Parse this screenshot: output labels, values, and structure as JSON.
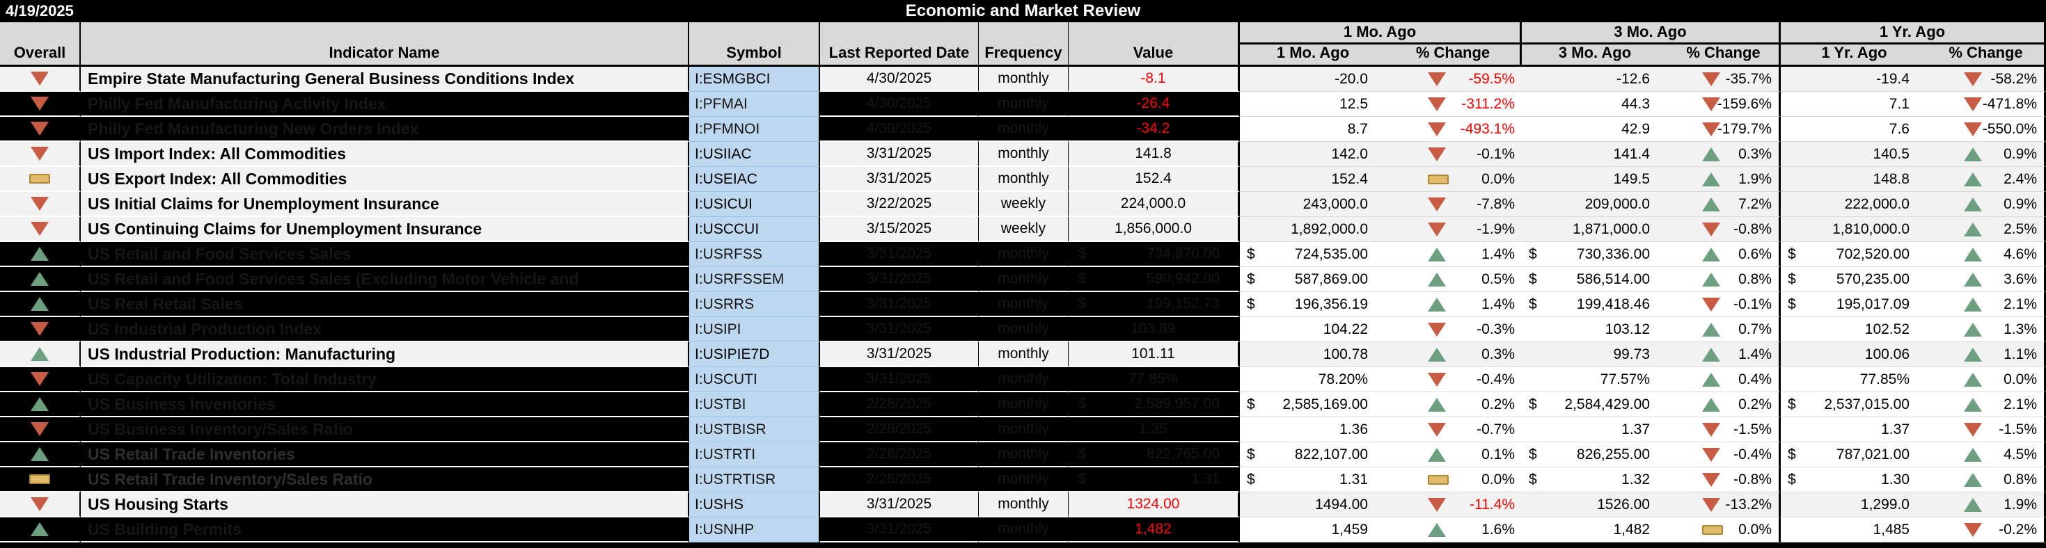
{
  "meta": {
    "report_date": "4/19/2025",
    "title": "Economic and Market Review"
  },
  "colors": {
    "top_band": "#000000",
    "header_bg": "#D9D9D9",
    "symbol_col_bg": "#BDD7EE",
    "row_light": "#F2F2F2",
    "hidden_row_left": "#000000",
    "hidden_row_right": "#FFFFFF",
    "negative_text": "#FF0000",
    "up_icon": "#6DA081",
    "down_icon": "#C75B43",
    "flat_icon": "#E2BA6C"
  },
  "header": {
    "overall": "Overall",
    "indicator": "Indicator Name",
    "symbol": "Symbol",
    "date": "Last Reported Date",
    "frequency": "Frequency",
    "value": "Value",
    "m1_group": "1 Mo. Ago",
    "m3_group": "3 Mo. Ago",
    "y1_group": "1 Yr. Ago",
    "m1": "1 Mo. Ago",
    "m3": "3 Mo. Ago",
    "y1": "1 Yr. Ago",
    "pct": "% Change"
  },
  "icon_legend": {
    "up": "up-triangle-icon",
    "down": "down-triangle-icon",
    "flat": "flat-dash-icon"
  },
  "rows": [
    {
      "name": "Empire State Manufacturing General Business Conditions Index",
      "hidden": false,
      "overall": "down",
      "symbol": "I:ESMGBCI",
      "date": "4/30/2025",
      "freq": "monthly",
      "value": {
        "text": "-8.1",
        "red": true,
        "dollar": false
      },
      "m1": {
        "text": "-20.0",
        "dollar": false
      },
      "m1chg": {
        "dir": "down",
        "text": "-59.5%",
        "red": true
      },
      "m3": {
        "text": "-12.6",
        "dollar": false
      },
      "m3chg": {
        "dir": "down",
        "text": "-35.7%",
        "red": false
      },
      "y1": {
        "text": "-19.4",
        "dollar": false
      },
      "y1chg": {
        "dir": "down",
        "text": "-58.2%",
        "red": false
      }
    },
    {
      "name": "Philly Fed Manufacturing Activity Index",
      "hidden": true,
      "overall": "down",
      "symbol": "I:PFMAI",
      "date": "4/30/2025",
      "freq": "monthly",
      "value": {
        "text": "-26.4",
        "red": true,
        "dollar": false
      },
      "m1": {
        "text": "12.5",
        "dollar": false
      },
      "m1chg": {
        "dir": "down",
        "text": "-311.2%",
        "red": true
      },
      "m3": {
        "text": "44.3",
        "dollar": false
      },
      "m3chg": {
        "dir": "down",
        "text": "-159.6%",
        "red": false
      },
      "y1": {
        "text": "7.1",
        "dollar": false
      },
      "y1chg": {
        "dir": "down",
        "text": "-471.8%",
        "red": false
      }
    },
    {
      "name": "Philly Fed Manufacturing New Orders Index",
      "hidden": true,
      "overall": "down",
      "symbol": "I:PFMNOI",
      "date": "4/30/2025",
      "freq": "monthly",
      "value": {
        "text": "-34.2",
        "red": true,
        "dollar": false
      },
      "m1": {
        "text": "8.7",
        "dollar": false
      },
      "m1chg": {
        "dir": "down",
        "text": "-493.1%",
        "red": true
      },
      "m3": {
        "text": "42.9",
        "dollar": false
      },
      "m3chg": {
        "dir": "down",
        "text": "-179.7%",
        "red": false
      },
      "y1": {
        "text": "7.6",
        "dollar": false
      },
      "y1chg": {
        "dir": "down",
        "text": "-550.0%",
        "red": false
      }
    },
    {
      "name": "US Import Index: All Commodities",
      "hidden": false,
      "overall": "down",
      "symbol": "I:USIIAC",
      "date": "3/31/2025",
      "freq": "monthly",
      "value": {
        "text": "141.8",
        "red": false,
        "dollar": false
      },
      "m1": {
        "text": "142.0",
        "dollar": false
      },
      "m1chg": {
        "dir": "down",
        "text": "-0.1%",
        "red": false
      },
      "m3": {
        "text": "141.4",
        "dollar": false
      },
      "m3chg": {
        "dir": "up",
        "text": "0.3%",
        "red": false
      },
      "y1": {
        "text": "140.5",
        "dollar": false
      },
      "y1chg": {
        "dir": "up",
        "text": "0.9%",
        "red": false
      }
    },
    {
      "name": "US Export Index: All Commodities",
      "hidden": false,
      "overall": "flat",
      "symbol": "I:USEIAC",
      "date": "3/31/2025",
      "freq": "monthly",
      "value": {
        "text": "152.4",
        "red": false,
        "dollar": false
      },
      "m1": {
        "text": "152.4",
        "dollar": false
      },
      "m1chg": {
        "dir": "flat",
        "text": "0.0%",
        "red": false
      },
      "m3": {
        "text": "149.5",
        "dollar": false
      },
      "m3chg": {
        "dir": "up",
        "text": "1.9%",
        "red": false
      },
      "y1": {
        "text": "148.8",
        "dollar": false
      },
      "y1chg": {
        "dir": "up",
        "text": "2.4%",
        "red": false
      }
    },
    {
      "name": "US Initial Claims for Unemployment Insurance",
      "hidden": false,
      "overall": "down",
      "symbol": "I:USICUI",
      "date": "3/22/2025",
      "freq": "weekly",
      "value": {
        "text": "224,000.0",
        "red": false,
        "dollar": false
      },
      "m1": {
        "text": "243,000.0",
        "dollar": false
      },
      "m1chg": {
        "dir": "down",
        "text": "-7.8%",
        "red": false
      },
      "m3": {
        "text": "209,000.0",
        "dollar": false
      },
      "m3chg": {
        "dir": "up",
        "text": "7.2%",
        "red": false
      },
      "y1": {
        "text": "222,000.0",
        "dollar": false
      },
      "y1chg": {
        "dir": "up",
        "text": "0.9%",
        "red": false
      }
    },
    {
      "name": "US Continuing Claims for Unemployment Insurance",
      "hidden": false,
      "overall": "down",
      "symbol": "I:USCCUI",
      "date": "3/15/2025",
      "freq": "weekly",
      "value": {
        "text": "1,856,000.0",
        "red": false,
        "dollar": false
      },
      "m1": {
        "text": "1,892,000.0",
        "dollar": false
      },
      "m1chg": {
        "dir": "down",
        "text": "-1.9%",
        "red": false
      },
      "m3": {
        "text": "1,871,000.0",
        "dollar": false
      },
      "m3chg": {
        "dir": "down",
        "text": "-0.8%",
        "red": false
      },
      "y1": {
        "text": "1,810,000.0",
        "dollar": false
      },
      "y1chg": {
        "dir": "up",
        "text": "2.5%",
        "red": false
      }
    },
    {
      "name": "US Retail and Food Services Sales",
      "hidden": true,
      "overall": "up",
      "symbol": "I:USRFSS",
      "date": "3/31/2025",
      "freq": "monthly",
      "value": {
        "text": "734,870.00",
        "red": false,
        "dollar": true
      },
      "m1": {
        "text": "724,535.00",
        "dollar": true
      },
      "m1chg": {
        "dir": "up",
        "text": "1.4%",
        "red": false
      },
      "m3": {
        "text": "730,336.00",
        "dollar": true
      },
      "m3chg": {
        "dir": "up",
        "text": "0.6%",
        "red": false
      },
      "y1": {
        "text": "702,520.00",
        "dollar": true
      },
      "y1chg": {
        "dir": "up",
        "text": "4.6%",
        "red": false
      }
    },
    {
      "name": "US Retail and Food Services Sales (Excluding Motor Vehicle and",
      "hidden": true,
      "overall": "up",
      "symbol": "I:USRFSSEM",
      "date": "3/31/2025",
      "freq": "monthly",
      "value": {
        "text": "590,942.00",
        "red": false,
        "dollar": true
      },
      "m1": {
        "text": "587,869.00",
        "dollar": true
      },
      "m1chg": {
        "dir": "up",
        "text": "0.5%",
        "red": false
      },
      "m3": {
        "text": "586,514.00",
        "dollar": true
      },
      "m3chg": {
        "dir": "up",
        "text": "0.8%",
        "red": false
      },
      "y1": {
        "text": "570,235.00",
        "dollar": true
      },
      "y1chg": {
        "dir": "up",
        "text": "3.6%",
        "red": false
      }
    },
    {
      "name": "US Real Retail Sales",
      "hidden": true,
      "overall": "up",
      "symbol": "I:USRRS",
      "date": "3/31/2025",
      "freq": "monthly",
      "value": {
        "text": "199,152.73",
        "red": false,
        "dollar": true
      },
      "m1": {
        "text": "196,356.19",
        "dollar": true
      },
      "m1chg": {
        "dir": "up",
        "text": "1.4%",
        "red": false
      },
      "m3": {
        "text": "199,418.46",
        "dollar": true
      },
      "m3chg": {
        "dir": "down",
        "text": "-0.1%",
        "red": false
      },
      "y1": {
        "text": "195,017.09",
        "dollar": true
      },
      "y1chg": {
        "dir": "up",
        "text": "2.1%",
        "red": false
      }
    },
    {
      "name": "US Industrial Production Index",
      "hidden": true,
      "overall": "down",
      "symbol": "I:USIPI",
      "date": "3/31/2025",
      "freq": "monthly",
      "value": {
        "text": "103.89",
        "red": false,
        "dollar": false
      },
      "m1": {
        "text": "104.22",
        "dollar": false
      },
      "m1chg": {
        "dir": "down",
        "text": "-0.3%",
        "red": false
      },
      "m3": {
        "text": "103.12",
        "dollar": false
      },
      "m3chg": {
        "dir": "up",
        "text": "0.7%",
        "red": false
      },
      "y1": {
        "text": "102.52",
        "dollar": false
      },
      "y1chg": {
        "dir": "up",
        "text": "1.3%",
        "red": false
      }
    },
    {
      "name": "US Industrial Production: Manufacturing",
      "hidden": false,
      "overall": "up",
      "symbol": "I:USIPIE7D",
      "date": "3/31/2025",
      "freq": "monthly",
      "value": {
        "text": "101.11",
        "red": false,
        "dollar": false
      },
      "m1": {
        "text": "100.78",
        "dollar": false
      },
      "m1chg": {
        "dir": "up",
        "text": "0.3%",
        "red": false
      },
      "m3": {
        "text": "99.73",
        "dollar": false
      },
      "m3chg": {
        "dir": "up",
        "text": "1.4%",
        "red": false
      },
      "y1": {
        "text": "100.06",
        "dollar": false
      },
      "y1chg": {
        "dir": "up",
        "text": "1.1%",
        "red": false
      }
    },
    {
      "name": "US Capacity Utilization: Total Industry",
      "hidden": true,
      "overall": "down",
      "symbol": "I:USCUTI",
      "date": "3/31/2025",
      "freq": "monthly",
      "value": {
        "text": "77.85%",
        "red": false,
        "dollar": false
      },
      "m1": {
        "text": "78.20%",
        "dollar": false
      },
      "m1chg": {
        "dir": "down",
        "text": "-0.4%",
        "red": false
      },
      "m3": {
        "text": "77.57%",
        "dollar": false
      },
      "m3chg": {
        "dir": "up",
        "text": "0.4%",
        "red": false
      },
      "y1": {
        "text": "77.85%",
        "dollar": false
      },
      "y1chg": {
        "dir": "up",
        "text": "0.0%",
        "red": false
      }
    },
    {
      "name": "US Business Inventories",
      "hidden": true,
      "overall": "up",
      "symbol": "I:USTBI",
      "date": "2/28/2025",
      "freq": "monthly",
      "value": {
        "text": "2,589,957.00",
        "red": false,
        "dollar": true
      },
      "m1": {
        "text": "2,585,169.00",
        "dollar": true
      },
      "m1chg": {
        "dir": "up",
        "text": "0.2%",
        "red": false
      },
      "m3": {
        "text": "2,584,429.00",
        "dollar": true
      },
      "m3chg": {
        "dir": "up",
        "text": "0.2%",
        "red": false
      },
      "y1": {
        "text": "2,537,015.00",
        "dollar": true
      },
      "y1chg": {
        "dir": "up",
        "text": "2.1%",
        "red": false
      }
    },
    {
      "name": "US Business Inventory/Sales Ratio",
      "hidden": true,
      "overall": "down",
      "symbol": "I:USTBISR",
      "date": "2/28/2025",
      "freq": "monthly",
      "value": {
        "text": "1.35",
        "red": false,
        "dollar": false
      },
      "m1": {
        "text": "1.36",
        "dollar": false
      },
      "m1chg": {
        "dir": "down",
        "text": "-0.7%",
        "red": false
      },
      "m3": {
        "text": "1.37",
        "dollar": false
      },
      "m3chg": {
        "dir": "down",
        "text": "-1.5%",
        "red": false
      },
      "y1": {
        "text": "1.37",
        "dollar": false
      },
      "y1chg": {
        "dir": "down",
        "text": "-1.5%",
        "red": false
      }
    },
    {
      "name": "US Retail Trade Inventories",
      "hidden": true,
      "gray": true,
      "overall": "up",
      "symbol": "I:USTRTI",
      "date": "2/28/2025",
      "freq": "monthly",
      "value": {
        "text": "822,765.00",
        "red": false,
        "dollar": true
      },
      "m1": {
        "text": "822,107.00",
        "dollar": true
      },
      "m1chg": {
        "dir": "up",
        "text": "0.1%",
        "red": false
      },
      "m3": {
        "text": "826,255.00",
        "dollar": true
      },
      "m3chg": {
        "dir": "down",
        "text": "-0.4%",
        "red": false
      },
      "y1": {
        "text": "787,021.00",
        "dollar": true
      },
      "y1chg": {
        "dir": "up",
        "text": "4.5%",
        "red": false
      }
    },
    {
      "name": "US Retail Trade Inventory/Sales Ratio",
      "hidden": true,
      "gray": true,
      "overall": "flat",
      "symbol": "I:USTRTISR",
      "date": "2/28/2025",
      "freq": "monthly",
      "value": {
        "text": "1.31",
        "red": false,
        "dollar": true
      },
      "m1": {
        "text": "1.31",
        "dollar": true
      },
      "m1chg": {
        "dir": "flat",
        "text": "0.0%",
        "red": false
      },
      "m3": {
        "text": "1.32",
        "dollar": true
      },
      "m3chg": {
        "dir": "down",
        "text": "-0.8%",
        "red": false
      },
      "y1": {
        "text": "1.30",
        "dollar": true
      },
      "y1chg": {
        "dir": "up",
        "text": "0.8%",
        "red": false
      }
    },
    {
      "name": "US Housing Starts",
      "hidden": false,
      "overall": "down",
      "symbol": "I:USHS",
      "date": "3/31/2025",
      "freq": "monthly",
      "value": {
        "text": "1324.00",
        "red": true,
        "dollar": false
      },
      "m1": {
        "text": "1494.00",
        "dollar": false
      },
      "m1chg": {
        "dir": "down",
        "text": "-11.4%",
        "red": true
      },
      "m3": {
        "text": "1526.00",
        "dollar": false
      },
      "m3chg": {
        "dir": "down",
        "text": "-13.2%",
        "red": false
      },
      "y1": {
        "text": "1,299.0",
        "dollar": false
      },
      "y1chg": {
        "dir": "up",
        "text": "1.9%",
        "red": false
      }
    },
    {
      "name": "US Building Permits",
      "hidden": true,
      "overall": "up",
      "symbol": "I:USNHP",
      "date": "3/31/2025",
      "freq": "monthly",
      "value": {
        "text": "1,482",
        "red": true,
        "dollar": false
      },
      "m1": {
        "text": "1,459",
        "dollar": false
      },
      "m1chg": {
        "dir": "up",
        "text": "1.6%",
        "red": false
      },
      "m3": {
        "text": "1,482",
        "dollar": false
      },
      "m3chg": {
        "dir": "flat",
        "text": "0.0%",
        "red": false
      },
      "y1": {
        "text": "1,485",
        "dollar": false
      },
      "y1chg": {
        "dir": "down",
        "text": "-0.2%",
        "red": false
      }
    }
  ]
}
